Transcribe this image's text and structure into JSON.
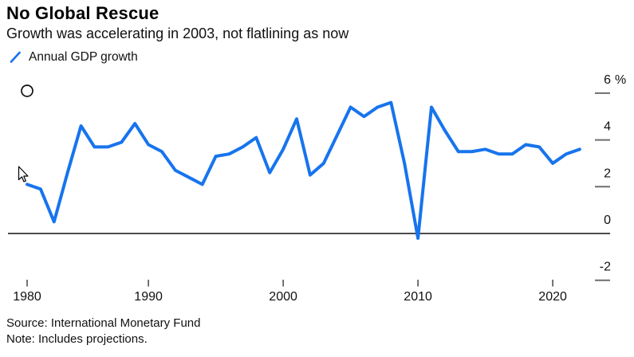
{
  "header": {
    "title": "No Global Rescue",
    "subtitle": "Growth was accelerating in 2003, not flatlining as now"
  },
  "legend": {
    "series_label": "Annual GDP growth"
  },
  "footer": {
    "source": "Source: International Monetary Fund",
    "note": "Note: Includes projections."
  },
  "colors": {
    "line_blue": "#1774EE",
    "axis_black": "#111111",
    "tick_gray": "#6E6E6E",
    "x_tick_dark": "#444444"
  },
  "chart_data": {
    "type": "line",
    "title": "No Global Rescue",
    "subtitle": "Growth was accelerating in 2003, not flatlining as now",
    "legend_entries": [
      "Annual GDP growth"
    ],
    "xlabel": "",
    "ylabel": "%",
    "xlim": [
      1980,
      2022
    ],
    "ylim": [
      -2.9,
      6.6
    ],
    "grid": false,
    "zero_baseline": true,
    "legend_position": "top-left",
    "x": [
      1980,
      1981,
      1982,
      1983,
      1984,
      1985,
      1986,
      1987,
      1988,
      1989,
      1990,
      1991,
      1992,
      1993,
      1994,
      1995,
      1996,
      1997,
      1998,
      1999,
      2000,
      2001,
      2002,
      2003,
      2004,
      2005,
      2006,
      2007,
      2008,
      2009,
      2010,
      2011,
      2012,
      2013,
      2014,
      2015,
      2016,
      2017,
      2018,
      2019,
      2020,
      2021
    ],
    "series": [
      {
        "name": "Annual GDP growth",
        "color": "#1774EE",
        "values": [
          2.1,
          1.9,
          0.5,
          2.6,
          4.6,
          3.7,
          3.7,
          3.9,
          4.7,
          3.8,
          3.5,
          2.7,
          2.4,
          2.1,
          3.3,
          3.4,
          3.7,
          4.1,
          2.6,
          3.6,
          4.9,
          2.5,
          3.0,
          4.2,
          5.4,
          5.0,
          5.4,
          5.6,
          3.0,
          -0.2,
          5.4,
          4.4,
          3.5,
          3.5,
          3.6,
          3.4,
          3.4,
          3.8,
          3.7,
          3.0,
          3.4,
          3.6
        ]
      }
    ],
    "y_axis": {
      "side": "right",
      "unit_suffix": "%",
      "ticks": [
        {
          "label": "6",
          "value": 6
        },
        {
          "label": "4",
          "value": 4
        },
        {
          "label": "2",
          "value": 2
        },
        {
          "label": "0",
          "value": 0
        },
        {
          "label": "-2",
          "value": -2
        }
      ]
    },
    "x_axis": {
      "tick_labels": [
        "1980",
        "1990",
        "2000",
        "2010",
        "2020"
      ],
      "tick_position_years": [
        1980,
        1989,
        1999,
        2009,
        2019
      ]
    },
    "annotations": {
      "circle_marker": {
        "year": 1980,
        "value": 6.1
      }
    }
  }
}
